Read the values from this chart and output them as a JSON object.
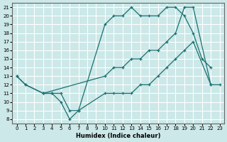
{
  "xlabel": "Humidex (Indice chaleur)",
  "bg_color": "#cce8e8",
  "grid_color": "#ffffff",
  "line_color": "#1a7070",
  "xlim": [
    -0.5,
    23.5
  ],
  "ylim": [
    7.5,
    21.5
  ],
  "xticks": [
    0,
    1,
    2,
    3,
    4,
    5,
    6,
    7,
    8,
    9,
    10,
    11,
    12,
    13,
    14,
    15,
    16,
    17,
    18,
    19,
    20,
    21,
    22,
    23
  ],
  "yticks": [
    8,
    9,
    10,
    11,
    12,
    13,
    14,
    15,
    16,
    17,
    18,
    19,
    20,
    21
  ],
  "line1_x": [
    0,
    1,
    3,
    10,
    11,
    12,
    13,
    14,
    15,
    16,
    17,
    18,
    19,
    20,
    22
  ],
  "line1_y": [
    13,
    12,
    11,
    13,
    14,
    14,
    15,
    15,
    16,
    16,
    17,
    18,
    21,
    21,
    12
  ],
  "line2_x": [
    0,
    1,
    3,
    4,
    5,
    6,
    7,
    10,
    11,
    12,
    13,
    14,
    15,
    16,
    17,
    18,
    19,
    20,
    21,
    22
  ],
  "line2_y": [
    13,
    12,
    11,
    11,
    10,
    8,
    9,
    19,
    20,
    20,
    21,
    20,
    20,
    20,
    21,
    21,
    20,
    18,
    15,
    14
  ],
  "line3_x": [
    3,
    4,
    5,
    6,
    7,
    10,
    11,
    12,
    13,
    14,
    15,
    16,
    17,
    18,
    19,
    20,
    22,
    23
  ],
  "line3_y": [
    11,
    11,
    11,
    9,
    9,
    11,
    11,
    11,
    11,
    12,
    12,
    13,
    14,
    15,
    16,
    17,
    12,
    12
  ]
}
